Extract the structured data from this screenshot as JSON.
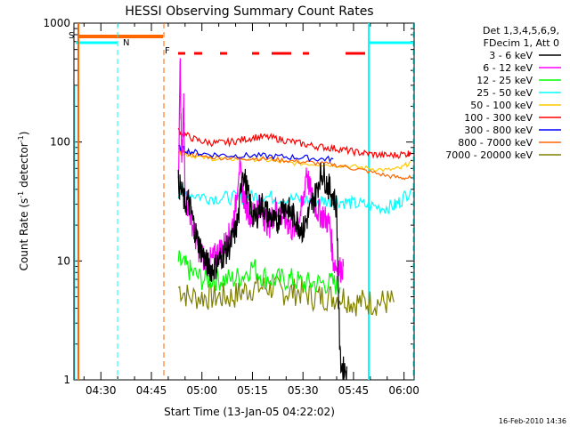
{
  "chart_data": {
    "type": "line",
    "title": "HESSI Observing Summary Count Rates",
    "xlabel": "Start Time (13-Jan-05 04:22:02)",
    "ylabel_main": "Count Rate (s",
    "ylabel_sup1": "-1",
    "ylabel_mid": " detector",
    "ylabel_sup2": "-1",
    "ylabel_end": ")",
    "ylim": [
      1,
      1000
    ],
    "yscale": "log",
    "xlim_min": [
      262,
      363
    ],
    "y_ticks": [
      {
        "value": 1,
        "label": "1"
      },
      {
        "value": 10,
        "label": "10"
      },
      {
        "value": 100,
        "label": "100"
      },
      {
        "value": 1000,
        "label": "1000"
      }
    ],
    "x_ticks": [
      {
        "value": 270,
        "label": "04:30"
      },
      {
        "value": 285,
        "label": "04:45"
      },
      {
        "value": 300,
        "label": "05:00"
      },
      {
        "value": 315,
        "label": "05:15"
      },
      {
        "value": 330,
        "label": "05:30"
      },
      {
        "value": 345,
        "label": "05:45"
      },
      {
        "value": 360,
        "label": "06:00"
      }
    ],
    "legend_header": [
      "Det 1,3,4,5,6,9,",
      "FDecim 1, Att 0"
    ],
    "legend_position": "right",
    "series": [
      {
        "name": "3 - 6 keV",
        "color": "#000000",
        "x": [
          293.0,
          294.0,
          295.0,
          296.0,
          297.0,
          298.0,
          299.0,
          300.0,
          301.0,
          302.0,
          303.0,
          304.0,
          305.0,
          306.0,
          307.0,
          308.0,
          309.0,
          310.0,
          311.0,
          312.0,
          313.0,
          314.0,
          315.0,
          316.0,
          317.0,
          318.0,
          319.0,
          320.0,
          321.0,
          322.0,
          323.0,
          324.0,
          325.0,
          326.0,
          327.0,
          328.0,
          329.0,
          330.0,
          331.0,
          332.0,
          333.0,
          334.0,
          335.0,
          336.0,
          337.0,
          338.0,
          339.0,
          340.0,
          341.0,
          342.0,
          343.0
        ],
        "y": [
          45,
          38,
          30,
          32,
          24,
          18,
          14,
          12,
          10,
          9,
          8.5,
          9,
          10,
          11,
          12,
          13,
          15,
          18,
          25,
          60,
          45,
          32,
          25,
          22,
          28,
          30,
          26,
          24,
          22,
          20,
          24,
          30,
          28,
          26,
          24,
          22,
          20,
          18,
          22,
          26,
          32,
          38,
          52,
          55,
          45,
          40,
          35,
          28,
          1.5,
          1.2,
          1.3
        ]
      },
      {
        "name": "6 - 12 keV",
        "color": "#ff00ff",
        "x": [
          293.0,
          293.5,
          294.0,
          294.6,
          295.0,
          296.0,
          297.0,
          298.0,
          299.0,
          300.0,
          301.0,
          302.0,
          303.0,
          304.0,
          305.0,
          306.0,
          307.0,
          308.0,
          309.0,
          310.0,
          311.0,
          312.0,
          313.0,
          314.0,
          315.0,
          316.0,
          317.0,
          318.0,
          319.0,
          320.0,
          321.0,
          322.0,
          323.0,
          324.0,
          325.0,
          326.0,
          327.0,
          328.0,
          329.0,
          330.0,
          331.0,
          332.0,
          333.0,
          334.0,
          335.0,
          336.0,
          337.0,
          338.0,
          339.0,
          340.0,
          341.0,
          342.0
        ],
        "y": [
          40,
          550,
          60,
          200,
          35,
          28,
          22,
          16,
          13,
          11,
          10,
          10,
          10,
          11,
          12,
          13,
          14,
          16,
          20,
          28,
          65,
          40,
          30,
          26,
          24,
          28,
          30,
          25,
          22,
          20,
          24,
          28,
          26,
          24,
          22,
          20,
          18,
          20,
          24,
          30,
          60,
          40,
          32,
          28,
          25,
          24,
          22,
          20,
          10,
          9,
          8.5,
          9
        ]
      },
      {
        "name": "12 - 25 keV",
        "color": "#00ff00",
        "x": [
          293.0,
          295.0,
          297.0,
          300.0,
          303.0,
          306.0,
          309.0,
          312.0,
          315.0,
          318.0,
          321.0,
          324.0,
          327.0,
          330.0,
          333.0,
          336.0,
          339.0,
          341.0
        ],
        "y": [
          10,
          9,
          8,
          7,
          7,
          7,
          7,
          7.5,
          9,
          7.5,
          7,
          7,
          7,
          6.5,
          6.5,
          6.5,
          6.5,
          6
        ]
      },
      {
        "name": "25 - 50 keV",
        "color": "#00ffff",
        "x": [
          293.0,
          296.0,
          300.0,
          304.0,
          308.0,
          312.0,
          315.0,
          318.0,
          322.0,
          326.0,
          330.0,
          334.0,
          337.0,
          340.0,
          343.0,
          346.0,
          350.0,
          354.0,
          357.0,
          359.0,
          362.0
        ],
        "y": [
          38,
          37,
          35,
          34,
          34,
          34,
          35,
          35,
          34,
          33,
          33,
          32,
          32,
          32,
          31,
          30,
          29,
          28,
          29,
          32,
          40
        ]
      },
      {
        "name": "50 - 100 keV",
        "color": "#ffc800",
        "x": [
          293.0,
          296.0,
          300.0,
          305.0,
          310.0,
          315.0,
          320.0,
          325.0,
          330.0,
          335.0,
          340.0,
          345.0,
          350.0,
          355.0,
          359.0,
          362.0
        ],
        "y": [
          82,
          78,
          74,
          72,
          72,
          72,
          70,
          67,
          66,
          65,
          64,
          62,
          60,
          58,
          60,
          68
        ]
      },
      {
        "name": "100 - 300 keV",
        "color": "#ff0000",
        "x": [
          293.0,
          295.0,
          298.0,
          301.0,
          304.0,
          307.0,
          310.0,
          313.0,
          316.0,
          319.0,
          322.0,
          325.0,
          328.0,
          331.0,
          334.0,
          337.0,
          340.0,
          343.0,
          346.0,
          349.0,
          352.0,
          355.0,
          358.0,
          361.0,
          362.0
        ],
        "y": [
          125,
          115,
          105,
          100,
          98,
          99,
          102,
          106,
          110,
          110,
          107,
          103,
          99,
          95,
          92,
          90,
          88,
          85,
          82,
          80,
          78,
          77,
          78,
          80,
          82
        ]
      },
      {
        "name": "300 - 800 keV",
        "color": "#0000ff",
        "x": [
          293.0,
          296.0,
          300.0,
          305.0,
          310.0,
          315.0,
          320.0,
          325.0,
          330.0,
          335.0,
          339.0
        ],
        "y": [
          90,
          84,
          80,
          78,
          77,
          77,
          76,
          75,
          74,
          72,
          72
        ]
      },
      {
        "name": "800 - 7000 keV",
        "color": "#ff6600",
        "x": [
          293.0,
          296.0,
          300.0,
          305.0,
          310.0,
          315.0,
          320.0,
          325.0,
          330.0,
          335.0,
          340.0,
          345.0,
          350.0,
          355.0,
          359.0,
          362.0
        ],
        "y": [
          85,
          80,
          76,
          74,
          73,
          73,
          72,
          70,
          68,
          66,
          64,
          60,
          56,
          52,
          50,
          50
        ]
      },
      {
        "name": "7000 - 20000 keV",
        "color": "#808000",
        "x": [
          293.0,
          296.0,
          300.0,
          303.0,
          306.0,
          309.0,
          312.0,
          315.0,
          318.0,
          321.0,
          324.0,
          327.0,
          330.0,
          333.0,
          336.0,
          339.0,
          342.0,
          345.0,
          348.0,
          351.0,
          354.0,
          357.0
        ],
        "y": [
          6,
          5,
          5,
          5,
          5,
          5,
          5.5,
          6,
          6,
          6,
          5.5,
          5.5,
          5.5,
          5,
          5,
          5,
          5,
          4.5,
          4.5,
          4.5,
          4.5,
          4.5
        ]
      }
    ],
    "flags": {
      "S_label": "S",
      "N_label": "N",
      "F_label": "F"
    },
    "footer_stamp": "16-Feb-2010 14:36"
  },
  "colors": {
    "text": "#000000",
    "orange": "#ff6600",
    "cyan": "#00ffff",
    "red": "#ff0000"
  }
}
